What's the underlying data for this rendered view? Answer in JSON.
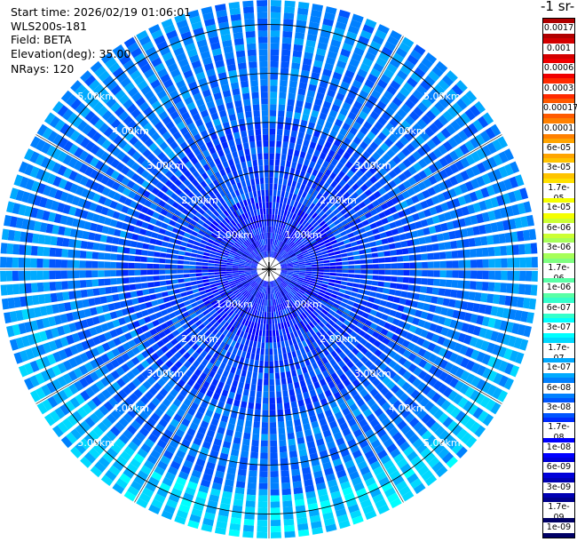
{
  "info": {
    "start_time": "Start time: 2026/02/19 01:06:01",
    "instrument": "WLS200s-181",
    "field": "Field: BETA",
    "elevation": "Elevation(deg): 35.00",
    "nrays": "NRays: 120"
  },
  "colorbar": {
    "title": "-1 sr-",
    "labels": [
      "0.0017",
      "0.001",
      "0.0006",
      "0.0003",
      "0.00017",
      "0.0001",
      "6e-05",
      "3e-05",
      "1.7e-05",
      "1e-05",
      "6e-06",
      "3e-06",
      "1.7e-06",
      "1e-06",
      "6e-07",
      "3e-07",
      "1.7e-07",
      "1e-07",
      "6e-08",
      "3e-08",
      "1.7e-08",
      "1e-08",
      "6e-09",
      "3e-09",
      "1.7e-09",
      "1e-09"
    ],
    "colors": [
      "#b00000",
      "#d40000",
      "#f00000",
      "#ff2a00",
      "#ff5a00",
      "#ff8000",
      "#ffa500",
      "#ffc400",
      "#ffe100",
      "#f5ff00",
      "#ccff33",
      "#a6ff59",
      "#7fff80",
      "#59ffa6",
      "#33ffcc",
      "#00ffff",
      "#00d9ff",
      "#00aaff",
      "#0080ff",
      "#0055ff",
      "#002aff",
      "#0000ff",
      "#0000d9",
      "#0000b3",
      "#00008c",
      "#000066"
    ]
  },
  "chart_data": {
    "type": "heatmap",
    "projection": "PPI polar scan",
    "field": "BETA",
    "elevation_deg": 35.0,
    "nrays": 120,
    "range_unit": "km",
    "max_range_km": 5.5,
    "range_rings_km": [
      1,
      2,
      3,
      4,
      5
    ],
    "ring_labels": [
      "1.00km",
      "2.00km",
      "3.00km",
      "4.00km",
      "5.00km"
    ],
    "scale": "log",
    "colorbar_ticks": [
      "0.0017",
      "0.001",
      "0.0006",
      "0.0003",
      "0.00017",
      "0.0001",
      "6e-05",
      "3e-05",
      "1.7e-05",
      "1e-05",
      "6e-06",
      "3e-06",
      "1.7e-06",
      "1e-06",
      "6e-07",
      "3e-07",
      "1.7e-07",
      "1e-07",
      "6e-08",
      "3e-08",
      "1.7e-08",
      "1e-08",
      "6e-09",
      "3e-09",
      "1.7e-09",
      "1e-09"
    ],
    "typical_value_range": [
      "1.7e-08",
      "1e-07"
    ],
    "edge_value_range": [
      "1.7e-07",
      "1e-06"
    ],
    "grid": true,
    "spokes_deg": [
      0,
      30,
      60,
      90,
      120,
      150,
      180,
      210,
      240,
      270,
      300,
      330
    ]
  }
}
